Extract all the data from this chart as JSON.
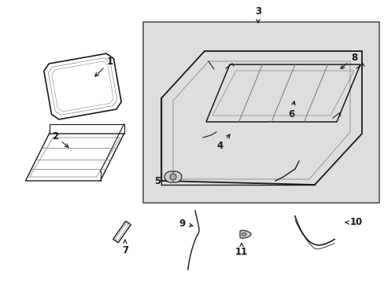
{
  "bg_color": "#ffffff",
  "box_bg": "#e0e0e0",
  "line_color": "#1a1a1a",
  "figsize": [
    4.89,
    3.6
  ],
  "dpi": 100
}
